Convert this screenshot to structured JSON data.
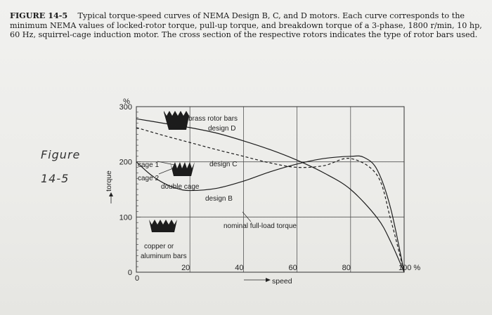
{
  "caption": {
    "label": "FIGURE 14-5",
    "text": "Typical torque-speed curves of NEMA Design B, C, and D motors. Each curve corresponds to the minimum NEMA values of locked-rotor torque, pull-up torque, and breakdown torque of a 3-phase, 1800 r/min, 10 hp, 60 Hz, squirrel-cage induction motor. The cross section of the respective rotors indicates the type of rotor bars used."
  },
  "handwriting": {
    "line1": "Figure",
    "line2": "14-5"
  },
  "chart_data": {
    "type": "line",
    "ylabel": "torque",
    "ylabel_unit": "%",
    "xlabel": "speed",
    "x_unit": "%",
    "xlim": [
      0,
      100
    ],
    "ylim": [
      0,
      300
    ],
    "xticks": [
      0,
      20,
      40,
      60,
      80,
      100
    ],
    "xtick_labels": [
      "0",
      "20",
      "40",
      "60",
      "80",
      "100 %"
    ],
    "yticks": [
      0,
      100,
      200,
      300
    ],
    "ytick_labels": [
      "0",
      "100",
      "200",
      "300"
    ],
    "grid": true,
    "series": [
      {
        "name": "design D",
        "style": "solid",
        "x": [
          0,
          10,
          20,
          30,
          40,
          50,
          60,
          70,
          80,
          90,
          95,
          100
        ],
        "y": [
          278,
          270,
          262,
          252,
          238,
          222,
          203,
          180,
          150,
          98,
          55,
          0
        ]
      },
      {
        "name": "design C",
        "style": "dashed",
        "x": [
          0,
          10,
          20,
          30,
          40,
          50,
          60,
          70,
          80,
          90,
          95,
          100
        ],
        "y": [
          262,
          248,
          235,
          222,
          210,
          198,
          190,
          193,
          206,
          175,
          95,
          0
        ]
      },
      {
        "name": "design B",
        "style": "solid",
        "x": [
          0,
          5,
          10,
          15,
          20,
          30,
          40,
          50,
          60,
          70,
          80,
          85,
          90,
          95,
          100
        ],
        "y": [
          200,
          178,
          162,
          152,
          148,
          152,
          165,
          182,
          196,
          206,
          210,
          208,
          185,
          115,
          0
        ]
      }
    ],
    "annotations": {
      "brass": "brass rotor bars",
      "design_d": "design D",
      "design_c": "design C",
      "design_b": "design B",
      "cage1": "cage 1",
      "cage2": "cage 2",
      "double_cage": "double cage",
      "nominal": "nominal full-load torque",
      "copper1": "copper or",
      "copper2": "aluminum bars"
    }
  }
}
